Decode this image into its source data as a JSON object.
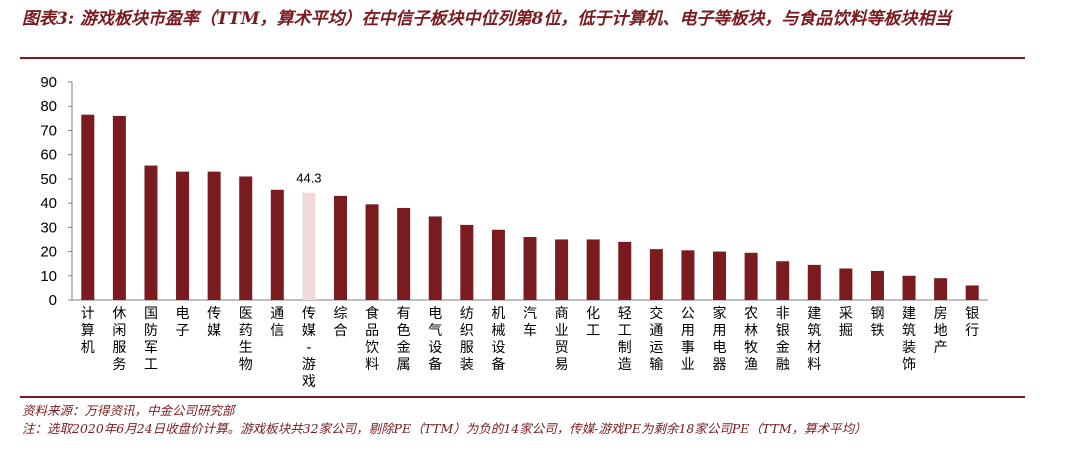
{
  "title": "图表3: 游戏板块市盈率（TTM，算术平均）在中信子板块中位列第8位，低于计算机、电子等板块，与食品饮料等板块相当",
  "source": "资料来源：万得资讯，中金公司研究部",
  "note": "注：选取2020年6月24日收盘价计算。游戏板块共32家公司，剔除PE（TTM）为负的14家公司，传媒-游戏PE为剩余18家公司PE（TTM，算术平均）",
  "colors": {
    "bar": "#7a1b1f",
    "highlight": "#f0d9d9",
    "axis": "#7f7f7f",
    "accent": "#7a1b1f"
  },
  "chart_data": {
    "type": "bar",
    "categories": [
      "计算机",
      "休闲服务",
      "国防军工",
      "电子",
      "传媒",
      "医药生物",
      "通信",
      "传媒-游戏",
      "综合",
      "食品饮料",
      "有色金属",
      "电气设备",
      "纺织服装",
      "机械设备",
      "汽车",
      "商业贸易",
      "化工",
      "轻工制造",
      "交通运输",
      "公用事业",
      "家用电器",
      "农林牧渔",
      "非银金融",
      "建筑材料",
      "采掘",
      "钢铁",
      "建筑装饰",
      "房地产",
      "银行"
    ],
    "values": [
      76.5,
      76,
      55.5,
      53,
      53,
      51,
      45.5,
      44.3,
      43,
      39.5,
      38,
      34.5,
      31,
      29,
      26,
      25,
      25,
      24,
      21,
      20.5,
      20,
      19.5,
      16,
      14.5,
      13,
      12,
      10,
      9,
      6
    ],
    "highlight_category": "传媒-游戏",
    "data_labels": [
      {
        "category": "传媒-游戏",
        "text": "44.3"
      }
    ],
    "ylim": [
      0,
      90
    ],
    "yticks": [
      0,
      10,
      20,
      30,
      40,
      50,
      60,
      70,
      80,
      90
    ],
    "grid": false,
    "legend": "none"
  }
}
